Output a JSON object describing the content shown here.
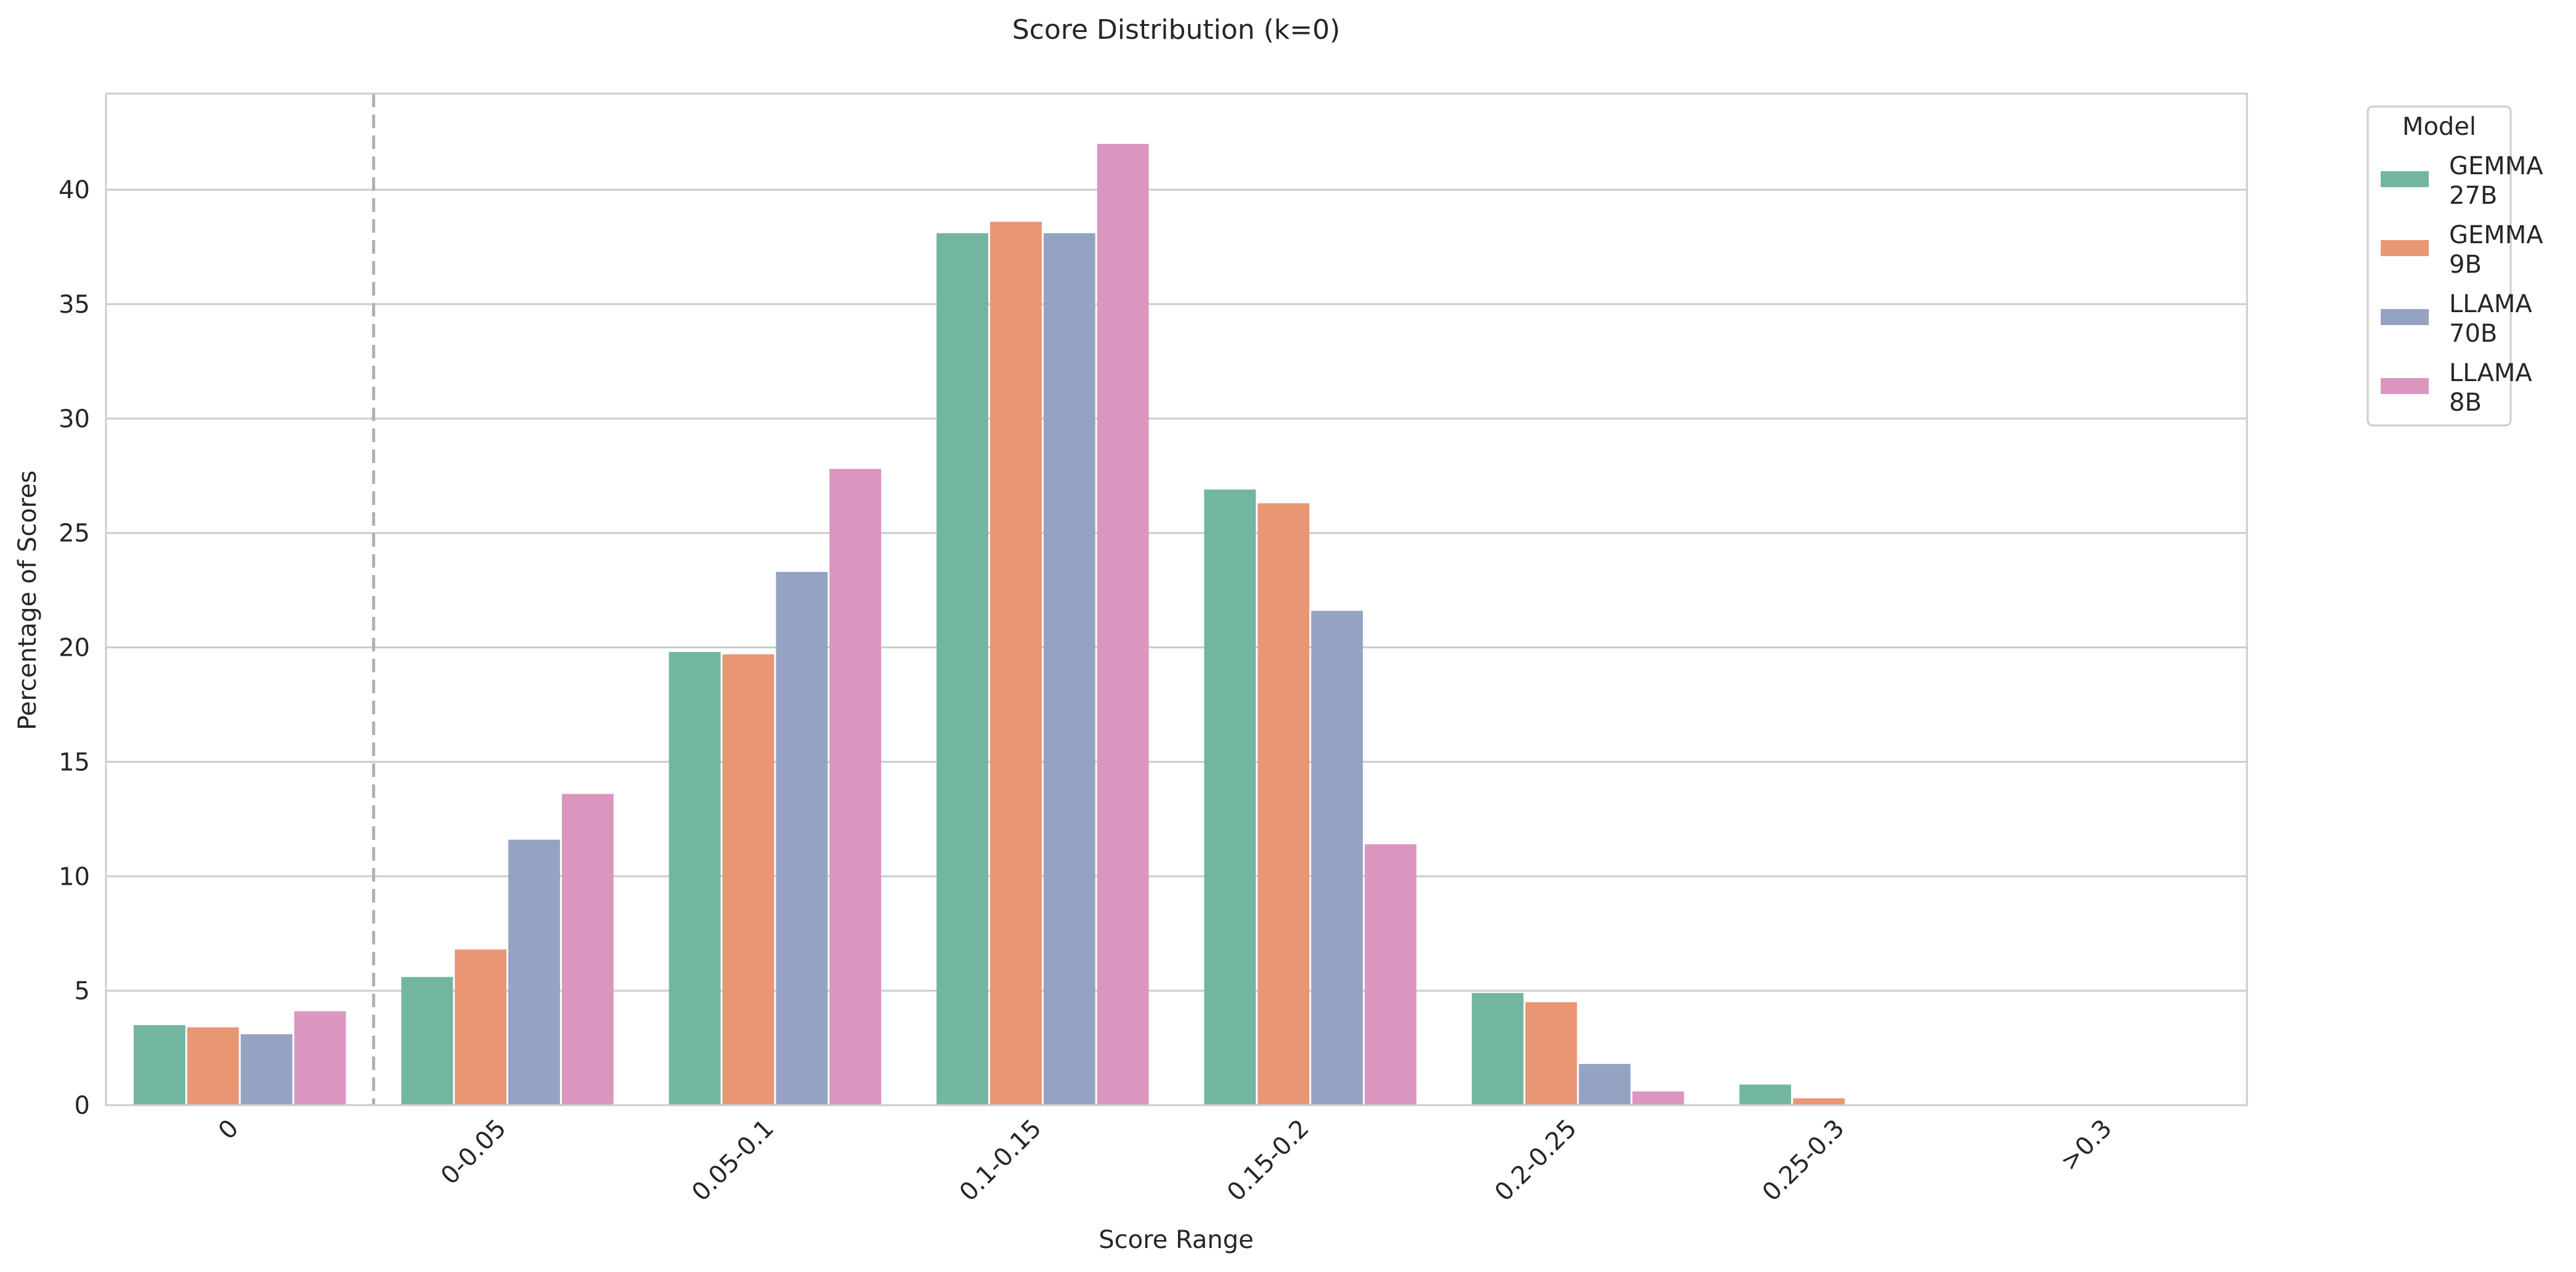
{
  "chart_data": {
    "type": "bar",
    "title": "Score Distribution (k=0)",
    "xlabel": "Score Range",
    "ylabel": "Percentage of Scores",
    "categories": [
      "0",
      "0-0.05",
      "0.05-0.1",
      "0.1-0.15",
      "0.15-0.2",
      "0.2-0.25",
      "0.25-0.3",
      ">0.3"
    ],
    "series": [
      {
        "name": "GEMMA\n27B",
        "color": "#72b6a1",
        "values": [
          3.5,
          5.6,
          19.8,
          38.1,
          26.9,
          4.9,
          0.9,
          0.0
        ]
      },
      {
        "name": "GEMMA\n9B",
        "color": "#e99675",
        "values": [
          3.4,
          6.8,
          19.7,
          38.6,
          26.3,
          4.5,
          0.3,
          0.0
        ]
      },
      {
        "name": "LLAMA\n70B",
        "color": "#95a3c3",
        "values": [
          3.1,
          11.6,
          23.3,
          38.1,
          21.6,
          1.8,
          0.0,
          0.0
        ]
      },
      {
        "name": "LLAMA\n8B",
        "color": "#db96c0",
        "values": [
          4.1,
          13.6,
          27.8,
          42.0,
          11.4,
          0.6,
          0.0,
          0.0
        ]
      }
    ],
    "ylim": [
      0,
      44.2
    ],
    "yticks": [
      0,
      5,
      10,
      15,
      20,
      25,
      30,
      35,
      40
    ],
    "grid": true,
    "legend": {
      "title": "Model",
      "placement": "outside-top-right"
    },
    "reference_line": {
      "between_categories": [
        "0",
        "0-0.05"
      ],
      "style": "dashed",
      "color": "#b0b0b0"
    }
  }
}
